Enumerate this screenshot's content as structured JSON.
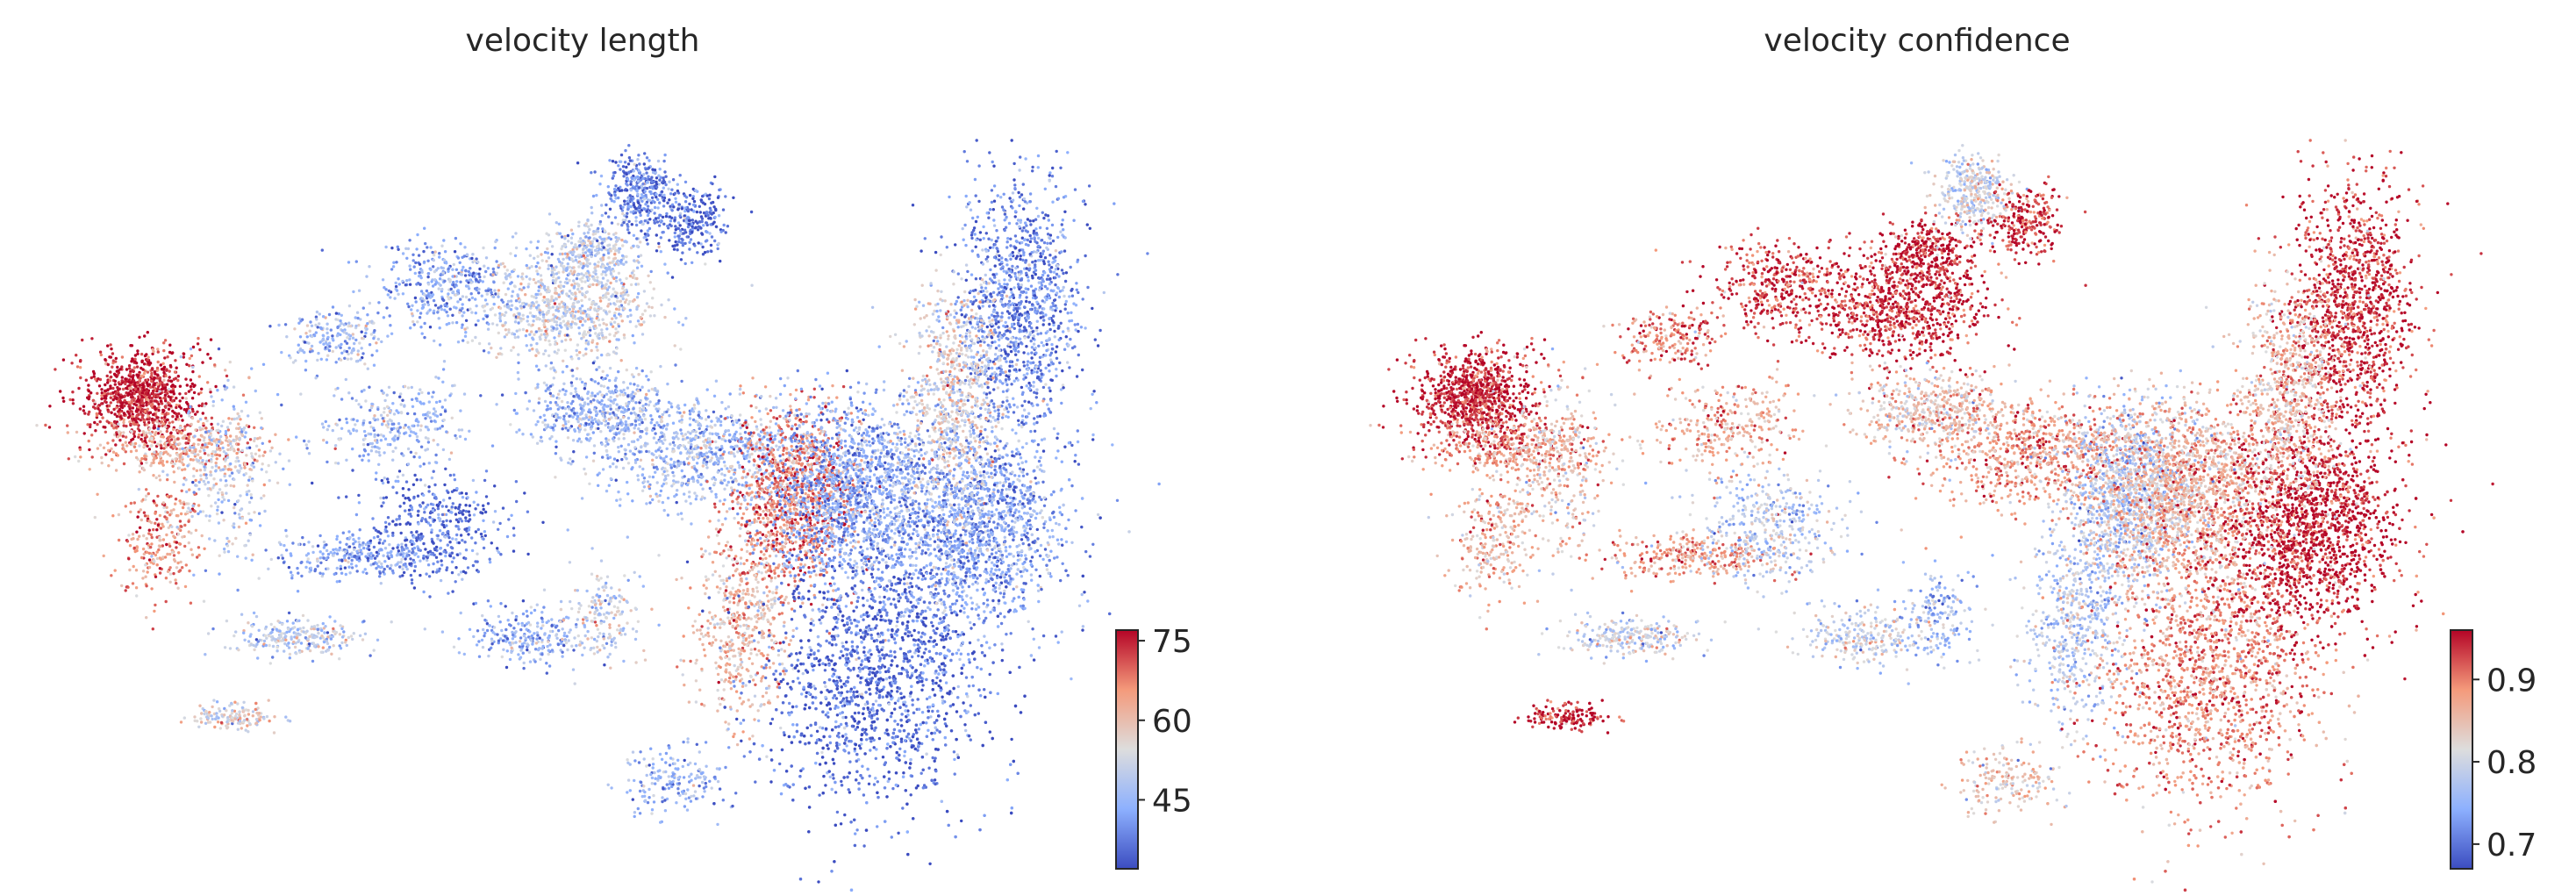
{
  "chart_data": [
    {
      "type": "scatter",
      "title": "velocity length",
      "xlabel": "",
      "ylabel": "",
      "colormap": "coolwarm",
      "color_low": "#3b4cc0",
      "color_mid": "#dddddd",
      "color_high": "#b40426",
      "colorbar": {
        "min": 32,
        "max": 77,
        "ticks": [
          45,
          60,
          75
        ],
        "tick_labels": [
          "45",
          "60",
          "75"
        ]
      },
      "regions": [
        {
          "x": 0.07,
          "y": 0.4,
          "rx": 0.05,
          "ry": 0.055,
          "value": 76,
          "n": 900
        },
        {
          "x": 0.11,
          "y": 0.47,
          "rx": 0.07,
          "ry": 0.03,
          "value": 62,
          "n": 400
        },
        {
          "x": 0.09,
          "y": 0.6,
          "rx": 0.035,
          "ry": 0.06,
          "value": 66,
          "n": 250
        },
        {
          "x": 0.22,
          "y": 0.73,
          "rx": 0.05,
          "ry": 0.02,
          "value": 50,
          "n": 250
        },
        {
          "x": 0.16,
          "y": 0.84,
          "rx": 0.035,
          "ry": 0.015,
          "value": 55,
          "n": 150
        },
        {
          "x": 0.28,
          "y": 0.62,
          "rx": 0.07,
          "ry": 0.025,
          "value": 42,
          "n": 300
        },
        {
          "x": 0.36,
          "y": 0.58,
          "rx": 0.06,
          "ry": 0.06,
          "value": 36,
          "n": 400
        },
        {
          "x": 0.32,
          "y": 0.44,
          "rx": 0.06,
          "ry": 0.05,
          "value": 46,
          "n": 300
        },
        {
          "x": 0.26,
          "y": 0.32,
          "rx": 0.04,
          "ry": 0.03,
          "value": 46,
          "n": 200
        },
        {
          "x": 0.45,
          "y": 0.73,
          "rx": 0.05,
          "ry": 0.03,
          "value": 44,
          "n": 250
        },
        {
          "x": 0.59,
          "y": 0.93,
          "rx": 0.04,
          "ry": 0.04,
          "value": 44,
          "n": 180
        },
        {
          "x": 0.52,
          "y": 0.7,
          "rx": 0.03,
          "ry": 0.05,
          "value": 52,
          "n": 180
        },
        {
          "x": 0.37,
          "y": 0.25,
          "rx": 0.06,
          "ry": 0.05,
          "value": 42,
          "n": 400
        },
        {
          "x": 0.49,
          "y": 0.28,
          "rx": 0.07,
          "ry": 0.06,
          "value": 52,
          "n": 800
        },
        {
          "x": 0.51,
          "y": 0.2,
          "rx": 0.04,
          "ry": 0.035,
          "value": 50,
          "n": 300
        },
        {
          "x": 0.56,
          "y": 0.12,
          "rx": 0.03,
          "ry": 0.04,
          "value": 38,
          "n": 350
        },
        {
          "x": 0.61,
          "y": 0.16,
          "rx": 0.03,
          "ry": 0.04,
          "value": 36,
          "n": 250
        },
        {
          "x": 0.52,
          "y": 0.42,
          "rx": 0.06,
          "ry": 0.04,
          "value": 45,
          "n": 500
        },
        {
          "x": 0.62,
          "y": 0.48,
          "rx": 0.09,
          "ry": 0.06,
          "value": 46,
          "n": 800
        },
        {
          "x": 0.71,
          "y": 0.54,
          "rx": 0.05,
          "ry": 0.1,
          "value": 68,
          "n": 1100
        },
        {
          "x": 0.66,
          "y": 0.72,
          "rx": 0.04,
          "ry": 0.1,
          "value": 60,
          "n": 500
        },
        {
          "x": 0.79,
          "y": 0.78,
          "rx": 0.09,
          "ry": 0.15,
          "value": 36,
          "n": 2400
        },
        {
          "x": 0.77,
          "y": 0.53,
          "rx": 0.07,
          "ry": 0.1,
          "value": 43,
          "n": 1500
        },
        {
          "x": 0.89,
          "y": 0.58,
          "rx": 0.07,
          "ry": 0.11,
          "value": 42,
          "n": 1800
        },
        {
          "x": 0.93,
          "y": 0.28,
          "rx": 0.05,
          "ry": 0.14,
          "value": 39,
          "n": 1200
        },
        {
          "x": 0.87,
          "y": 0.4,
          "rx": 0.04,
          "ry": 0.12,
          "value": 55,
          "n": 700
        },
        {
          "x": 0.15,
          "y": 0.5,
          "rx": 0.04,
          "ry": 0.1,
          "value": 50,
          "n": 300
        }
      ]
    },
    {
      "type": "scatter",
      "title": "velocity confidence",
      "xlabel": "",
      "ylabel": "",
      "colormap": "coolwarm",
      "color_low": "#3b4cc0",
      "color_mid": "#dddddd",
      "color_high": "#b40426",
      "colorbar": {
        "min": 0.67,
        "max": 0.96,
        "ticks": [
          0.7,
          0.8,
          0.9
        ],
        "tick_labels": [
          "0.7",
          "0.8",
          "0.9"
        ]
      },
      "regions": [
        {
          "x": 0.07,
          "y": 0.4,
          "rx": 0.05,
          "ry": 0.055,
          "value": 0.95,
          "n": 900
        },
        {
          "x": 0.11,
          "y": 0.47,
          "rx": 0.07,
          "ry": 0.03,
          "value": 0.88,
          "n": 400
        },
        {
          "x": 0.09,
          "y": 0.6,
          "rx": 0.035,
          "ry": 0.06,
          "value": 0.86,
          "n": 250
        },
        {
          "x": 0.22,
          "y": 0.73,
          "rx": 0.05,
          "ry": 0.02,
          "value": 0.8,
          "n": 250
        },
        {
          "x": 0.16,
          "y": 0.84,
          "rx": 0.035,
          "ry": 0.015,
          "value": 0.95,
          "n": 150
        },
        {
          "x": 0.28,
          "y": 0.62,
          "rx": 0.07,
          "ry": 0.025,
          "value": 0.88,
          "n": 300
        },
        {
          "x": 0.36,
          "y": 0.58,
          "rx": 0.06,
          "ry": 0.06,
          "value": 0.78,
          "n": 400
        },
        {
          "x": 0.32,
          "y": 0.44,
          "rx": 0.06,
          "ry": 0.05,
          "value": 0.87,
          "n": 300
        },
        {
          "x": 0.26,
          "y": 0.32,
          "rx": 0.04,
          "ry": 0.03,
          "value": 0.9,
          "n": 200
        },
        {
          "x": 0.45,
          "y": 0.73,
          "rx": 0.05,
          "ry": 0.03,
          "value": 0.8,
          "n": 250
        },
        {
          "x": 0.59,
          "y": 0.93,
          "rx": 0.04,
          "ry": 0.04,
          "value": 0.84,
          "n": 180
        },
        {
          "x": 0.52,
          "y": 0.7,
          "rx": 0.03,
          "ry": 0.05,
          "value": 0.76,
          "n": 180
        },
        {
          "x": 0.37,
          "y": 0.25,
          "rx": 0.06,
          "ry": 0.05,
          "value": 0.93,
          "n": 400
        },
        {
          "x": 0.49,
          "y": 0.28,
          "rx": 0.07,
          "ry": 0.06,
          "value": 0.94,
          "n": 800
        },
        {
          "x": 0.51,
          "y": 0.2,
          "rx": 0.04,
          "ry": 0.035,
          "value": 0.95,
          "n": 300
        },
        {
          "x": 0.56,
          "y": 0.12,
          "rx": 0.03,
          "ry": 0.04,
          "value": 0.8,
          "n": 350
        },
        {
          "x": 0.61,
          "y": 0.16,
          "rx": 0.03,
          "ry": 0.04,
          "value": 0.94,
          "n": 250
        },
        {
          "x": 0.52,
          "y": 0.42,
          "rx": 0.06,
          "ry": 0.04,
          "value": 0.84,
          "n": 500
        },
        {
          "x": 0.62,
          "y": 0.48,
          "rx": 0.09,
          "ry": 0.06,
          "value": 0.88,
          "n": 800
        },
        {
          "x": 0.71,
          "y": 0.54,
          "rx": 0.05,
          "ry": 0.1,
          "value": 0.78,
          "n": 1100
        },
        {
          "x": 0.66,
          "y": 0.72,
          "rx": 0.04,
          "ry": 0.1,
          "value": 0.78,
          "n": 500
        },
        {
          "x": 0.79,
          "y": 0.78,
          "rx": 0.09,
          "ry": 0.15,
          "value": 0.89,
          "n": 2400
        },
        {
          "x": 0.77,
          "y": 0.53,
          "rx": 0.07,
          "ry": 0.1,
          "value": 0.86,
          "n": 1500
        },
        {
          "x": 0.89,
          "y": 0.58,
          "rx": 0.07,
          "ry": 0.11,
          "value": 0.95,
          "n": 1800
        },
        {
          "x": 0.93,
          "y": 0.28,
          "rx": 0.05,
          "ry": 0.14,
          "value": 0.94,
          "n": 1200
        },
        {
          "x": 0.87,
          "y": 0.4,
          "rx": 0.04,
          "ry": 0.12,
          "value": 0.85,
          "n": 700
        },
        {
          "x": 0.15,
          "y": 0.5,
          "rx": 0.04,
          "ry": 0.1,
          "value": 0.84,
          "n": 300
        }
      ]
    }
  ]
}
